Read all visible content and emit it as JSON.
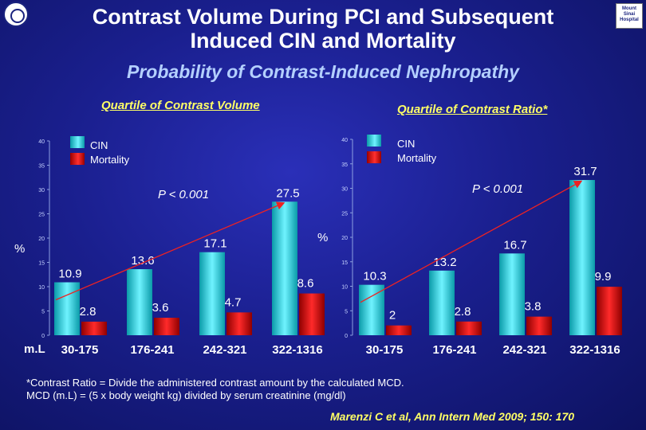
{
  "title_line1": "Contrast Volume During PCI and Subsequent",
  "title_line2": "Induced CIN and Mortality",
  "subtitle": "Probability of Contrast-Induced Nephropathy",
  "colors": {
    "cin": "#3ee0f0",
    "mortality": "#ee1111",
    "trend": "#ee2222",
    "heading": "#ffff66"
  },
  "logo_right_text": "Mount Sinai Hospital",
  "chart_data": [
    {
      "type": "bar",
      "title": "Quartile of Contrast Volume",
      "categories": [
        "30-175",
        "176-241",
        "242-321",
        "322-1316"
      ],
      "series": [
        {
          "name": "CIN",
          "values": [
            10.9,
            13.6,
            17.1,
            27.5
          ]
        },
        {
          "name": "Mortality",
          "values": [
            2.8,
            3.6,
            4.7,
            8.6
          ]
        }
      ],
      "unit_x": "m.L",
      "ylabel": "%",
      "ylim": [
        0,
        40
      ],
      "yticks": [
        0,
        5,
        10,
        15,
        20,
        25,
        30,
        35,
        40
      ],
      "p_value": "P < 0.001",
      "legend": [
        "CIN",
        "Mortality"
      ],
      "legend_position": "top-left",
      "trend_arrow": "CIN"
    },
    {
      "type": "bar",
      "title": "Quartile of Contrast Ratio*",
      "categories": [
        "30-175",
        "176-241",
        "242-321",
        "322-1316"
      ],
      "series": [
        {
          "name": "CIN",
          "values": [
            10.3,
            13.2,
            16.7,
            31.7
          ]
        },
        {
          "name": "Mortality",
          "values": [
            2.0,
            2.8,
            3.8,
            9.9
          ]
        }
      ],
      "ylabel": "%",
      "ylim": [
        0,
        40
      ],
      "yticks": [
        0,
        5,
        10,
        15,
        20,
        25,
        30,
        35,
        40
      ],
      "p_value": "P < 0.001",
      "legend": [
        "CIN",
        "Mortality"
      ],
      "legend_position": "top-left",
      "trend_arrow": "CIN"
    }
  ],
  "footnote_line1": "*Contrast Ratio = Divide the administered contrast amount by the calculated MCD.",
  "footnote_line2": "MCD (m.L) = (5 x body weight kg) divided by serum creatinine (mg/dl)",
  "citation": "Marenzi C et al, Ann Intern Med 2009; 150: 170"
}
